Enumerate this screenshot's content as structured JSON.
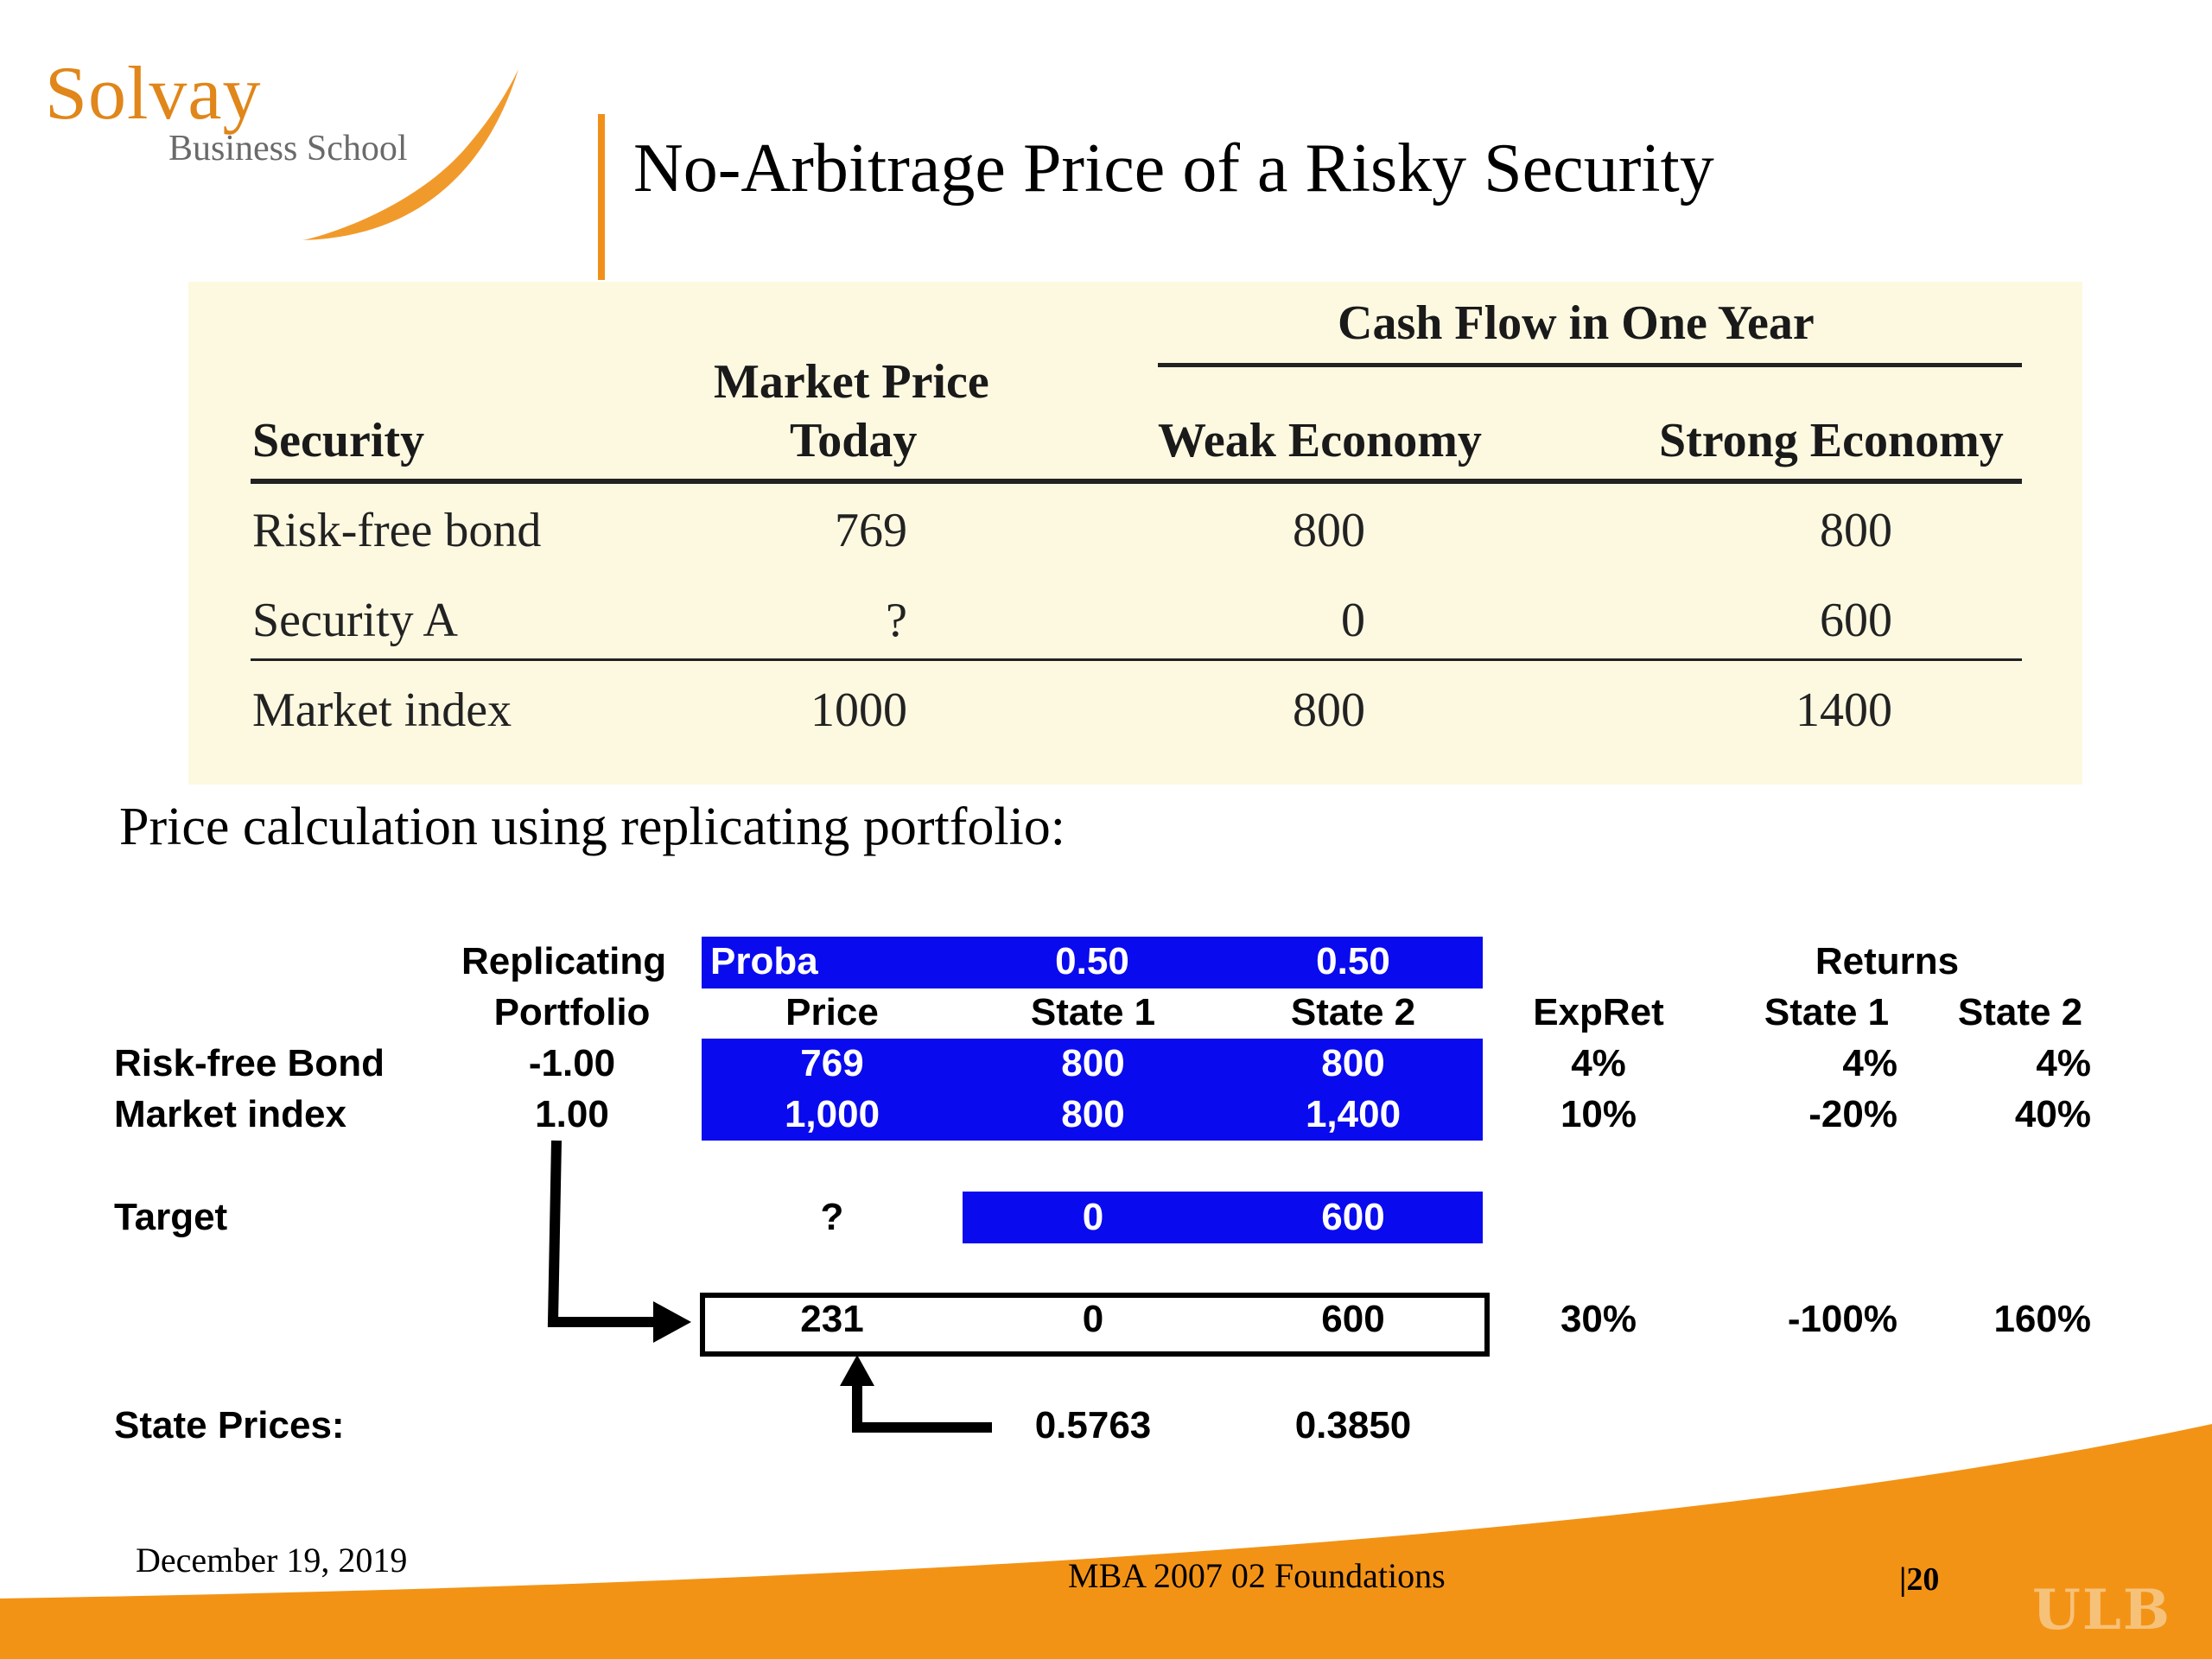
{
  "logo": {
    "name": "Solvay",
    "sub": "Business School"
  },
  "title": "No-Arbitrage Price of a Risky Security",
  "table": {
    "group_header": "Cash Flow in One Year",
    "col_security": "Security",
    "col_price_1": "Market Price",
    "col_price_2": "Today",
    "col_weak": "Weak Economy",
    "col_strong": "Strong Economy",
    "rows": [
      {
        "security": "Risk-free bond",
        "price": "769",
        "weak": "800",
        "strong": "800"
      },
      {
        "security": "Security A",
        "price": "?",
        "weak": "0",
        "strong": "600"
      },
      {
        "security": "Market index",
        "price": "1000",
        "weak": "800",
        "strong": "1400"
      }
    ]
  },
  "subtitle": "Price calculation using replicating portfolio:",
  "calc": {
    "hdr_replicating": "Replicating",
    "hdr_portfolio": "Portfolio",
    "hdr_proba": "Proba",
    "proba_1": "0.50",
    "proba_2": "0.50",
    "hdr_price": "Price",
    "hdr_state1": "State 1",
    "hdr_state2": "State 2",
    "hdr_expret": "ExpRet",
    "hdr_returns": "Returns",
    "hdr_ret_state1": "State 1",
    "hdr_ret_state2": "State 2",
    "rows": [
      {
        "label": "Risk-free Bond",
        "weight": "-1.00",
        "price": "769",
        "s1": "800",
        "s2": "800",
        "expret": "4%",
        "r1": "4%",
        "r2": "4%"
      },
      {
        "label": "Market index",
        "weight": "1.00",
        "price": "1,000",
        "s1": "800",
        "s2": "1,400",
        "expret": "10%",
        "r1": "-20%",
        "r2": "40%"
      }
    ],
    "target": {
      "label": "Target",
      "price": "?",
      "s1": "0",
      "s2": "600"
    },
    "result": {
      "price": "231",
      "s1": "0",
      "s2": "600",
      "expret": "30%",
      "r1": "-100%",
      "r2": "160%"
    },
    "state_prices": {
      "label": "State Prices:",
      "p1": "0.5763",
      "p2": "0.3850"
    }
  },
  "footer": {
    "date": "December 19, 2019",
    "course": "MBA 2007 02 Foundations",
    "page": "|20",
    "brand": "ULB"
  },
  "colors": {
    "accent_orange": "#f0901a",
    "cell_blue": "#0a0aef",
    "panel_bg": "#fdf9e1"
  }
}
